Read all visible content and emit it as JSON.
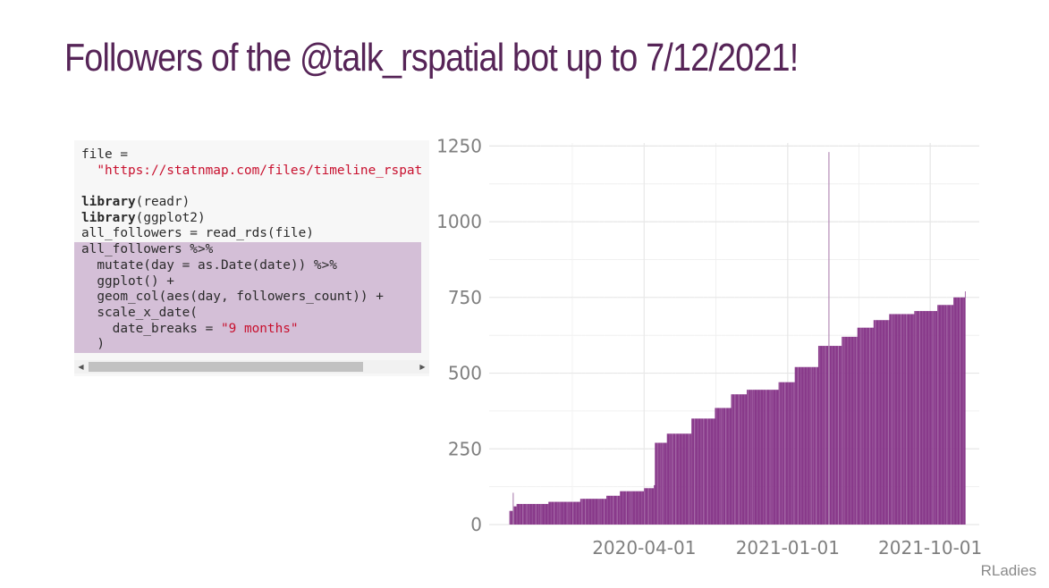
{
  "slide": {
    "title": "Followers of the @talk_rspatial bot up to 7/12/2021!",
    "footer": "RLadies",
    "accent_color": "#562457",
    "bar_color": "#88398a"
  },
  "code": {
    "lines": [
      {
        "parts": [
          {
            "t": "file ="
          }
        ]
      },
      {
        "parts": [
          {
            "t": "  "
          },
          {
            "t": "\"https://statnmap.com/files/timeline_rspat",
            "c": "str"
          }
        ]
      },
      {
        "parts": [
          {
            "t": ""
          }
        ]
      },
      {
        "parts": [
          {
            "t": "library",
            "c": "kw"
          },
          {
            "t": "(readr)"
          }
        ]
      },
      {
        "parts": [
          {
            "t": "library",
            "c": "kw"
          },
          {
            "t": "(ggplot2)"
          }
        ]
      },
      {
        "parts": [
          {
            "t": "all_followers = read_rds(file)"
          }
        ]
      },
      {
        "parts": [
          {
            "t": "all_followers %>%"
          }
        ],
        "hl": true
      },
      {
        "parts": [
          {
            "t": "  mutate(day = as.Date(date)) %>%"
          }
        ],
        "hl": true
      },
      {
        "parts": [
          {
            "t": "  ggplot() +"
          }
        ],
        "hl": true
      },
      {
        "parts": [
          {
            "t": "  geom_col(aes(day, followers_count)) +"
          }
        ],
        "hl": true
      },
      {
        "parts": [
          {
            "t": "  scale_x_date("
          }
        ],
        "hl": true
      },
      {
        "parts": [
          {
            "t": "    date_breaks = "
          },
          {
            "t": "\"9 months\"",
            "c": "str"
          }
        ],
        "hl": true
      },
      {
        "parts": [
          {
            "t": "  )"
          }
        ],
        "hl": true
      }
    ],
    "scrollbar": {
      "left_arrow": "◀",
      "right_arrow": "▶",
      "thumb_fraction": 0.84
    }
  },
  "chart_data": {
    "type": "bar",
    "title": "",
    "xlabel": "",
    "ylabel": "",
    "x_tick_labels": [
      "2020-04-01",
      "2021-01-01",
      "2021-10-01"
    ],
    "y_tick_labels": [
      "0",
      "250",
      "500",
      "750",
      "1000",
      "1250"
    ],
    "y_ticks": [
      0,
      250,
      500,
      750,
      1000,
      1250
    ],
    "ylim": [
      0,
      1260
    ],
    "xlim": [
      "2019-06-09",
      "2022-01-03"
    ],
    "x_ticks": [
      "2020-04-01",
      "2021-01-01",
      "2021-10-01"
    ],
    "grid": true,
    "legend": "none",
    "anomaly_spikes": [
      {
        "date": "2019-07-25",
        "value": 105
      },
      {
        "date": "2021-03-21",
        "value": 1230
      }
    ],
    "breakpoints": [
      {
        "date": "2019-07-18",
        "value": 45
      },
      {
        "date": "2019-07-25",
        "value": 60
      },
      {
        "date": "2019-08-01",
        "value": 68
      },
      {
        "date": "2019-10-01",
        "value": 75
      },
      {
        "date": "2019-12-01",
        "value": 85
      },
      {
        "date": "2020-01-20",
        "value": 95
      },
      {
        "date": "2020-02-15",
        "value": 110
      },
      {
        "date": "2020-04-01",
        "value": 120
      },
      {
        "date": "2020-04-20",
        "value": 130
      },
      {
        "date": "2020-04-22",
        "value": 270
      },
      {
        "date": "2020-05-15",
        "value": 300
      },
      {
        "date": "2020-07-01",
        "value": 350
      },
      {
        "date": "2020-08-15",
        "value": 385
      },
      {
        "date": "2020-09-15",
        "value": 430
      },
      {
        "date": "2020-10-15",
        "value": 445
      },
      {
        "date": "2020-12-15",
        "value": 470
      },
      {
        "date": "2021-01-15",
        "value": 520
      },
      {
        "date": "2021-03-01",
        "value": 590
      },
      {
        "date": "2021-04-15",
        "value": 620
      },
      {
        "date": "2021-05-15",
        "value": 650
      },
      {
        "date": "2021-06-15",
        "value": 675
      },
      {
        "date": "2021-07-15",
        "value": 695
      },
      {
        "date": "2021-09-01",
        "value": 705
      },
      {
        "date": "2021-10-15",
        "value": 725
      },
      {
        "date": "2021-11-15",
        "value": 750
      },
      {
        "date": "2021-12-07",
        "value": 770
      }
    ]
  }
}
